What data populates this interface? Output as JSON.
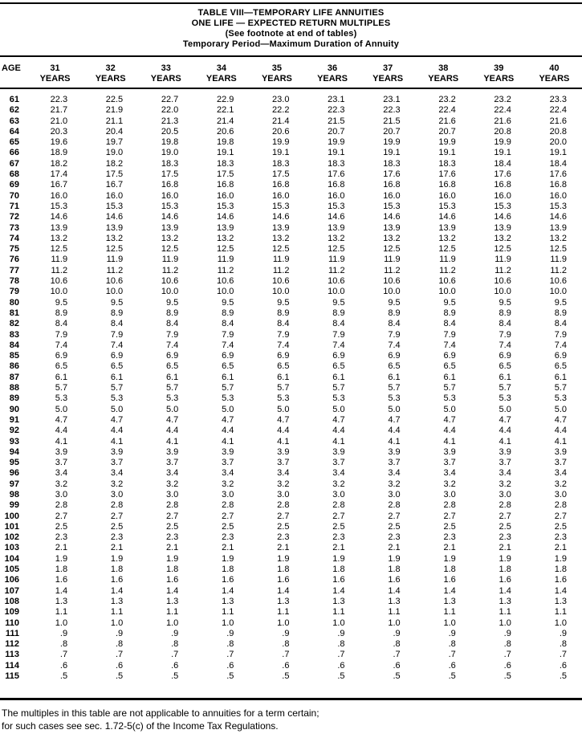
{
  "document": {
    "title_lines": [
      "TABLE VIII—TEMPORARY LIFE ANNUITIES",
      "ONE LIFE — EXPECTED RETURN MULTIPLES",
      "(See footnote at end of tables)",
      "Temporary Period—Maximum Duration of Annuity"
    ]
  },
  "table": {
    "age_header": "AGE",
    "years_label": "YEARS",
    "year_columns": [
      "31",
      "32",
      "33",
      "34",
      "35",
      "36",
      "37",
      "38",
      "39",
      "40"
    ],
    "rows": [
      {
        "age": "61",
        "values": [
          "22.3",
          "22.5",
          "22.7",
          "22.9",
          "23.0",
          "23.1",
          "23.1",
          "23.2",
          "23.2",
          "23.3"
        ]
      },
      {
        "age": "62",
        "values": [
          "21.7",
          "21.9",
          "22.0",
          "22.1",
          "22.2",
          "22.3",
          "22.3",
          "22.4",
          "22.4",
          "22.4"
        ]
      },
      {
        "age": "63",
        "values": [
          "21.0",
          "21.1",
          "21.3",
          "21.4",
          "21.4",
          "21.5",
          "21.5",
          "21.6",
          "21.6",
          "21.6"
        ]
      },
      {
        "age": "64",
        "values": [
          "20.3",
          "20.4",
          "20.5",
          "20.6",
          "20.6",
          "20.7",
          "20.7",
          "20.7",
          "20.8",
          "20.8"
        ]
      },
      {
        "age": "65",
        "values": [
          "19.6",
          "19.7",
          "19.8",
          "19.8",
          "19.9",
          "19.9",
          "19.9",
          "19.9",
          "19.9",
          "20.0"
        ]
      },
      {
        "age": "66",
        "values": [
          "18.9",
          "19.0",
          "19.0",
          "19.1",
          "19.1",
          "19.1",
          "19.1",
          "19.1",
          "19.1",
          "19.1"
        ]
      },
      {
        "age": "67",
        "values": [
          "18.2",
          "18.2",
          "18.3",
          "18.3",
          "18.3",
          "18.3",
          "18.3",
          "18.3",
          "18.4",
          "18.4"
        ]
      },
      {
        "age": "68",
        "values": [
          "17.4",
          "17.5",
          "17.5",
          "17.5",
          "17.5",
          "17.6",
          "17.6",
          "17.6",
          "17.6",
          "17.6"
        ]
      },
      {
        "age": "69",
        "values": [
          "16.7",
          "16.7",
          "16.8",
          "16.8",
          "16.8",
          "16.8",
          "16.8",
          "16.8",
          "16.8",
          "16.8"
        ]
      },
      {
        "age": "70",
        "values": [
          "16.0",
          "16.0",
          "16.0",
          "16.0",
          "16.0",
          "16.0",
          "16.0",
          "16.0",
          "16.0",
          "16.0"
        ]
      },
      {
        "age": "71",
        "values": [
          "15.3",
          "15.3",
          "15.3",
          "15.3",
          "15.3",
          "15.3",
          "15.3",
          "15.3",
          "15.3",
          "15.3"
        ]
      },
      {
        "age": "72",
        "values": [
          "14.6",
          "14.6",
          "14.6",
          "14.6",
          "14.6",
          "14.6",
          "14.6",
          "14.6",
          "14.6",
          "14.6"
        ]
      },
      {
        "age": "73",
        "values": [
          "13.9",
          "13.9",
          "13.9",
          "13.9",
          "13.9",
          "13.9",
          "13.9",
          "13.9",
          "13.9",
          "13.9"
        ]
      },
      {
        "age": "74",
        "values": [
          "13.2",
          "13.2",
          "13.2",
          "13.2",
          "13.2",
          "13.2",
          "13.2",
          "13.2",
          "13.2",
          "13.2"
        ]
      },
      {
        "age": "75",
        "values": [
          "12.5",
          "12.5",
          "12.5",
          "12.5",
          "12.5",
          "12.5",
          "12.5",
          "12.5",
          "12.5",
          "12.5"
        ]
      },
      {
        "age": "76",
        "values": [
          "11.9",
          "11.9",
          "11.9",
          "11.9",
          "11.9",
          "11.9",
          "11.9",
          "11.9",
          "11.9",
          "11.9"
        ]
      },
      {
        "age": "77",
        "values": [
          "11.2",
          "11.2",
          "11.2",
          "11.2",
          "11.2",
          "11.2",
          "11.2",
          "11.2",
          "11.2",
          "11.2"
        ]
      },
      {
        "age": "78",
        "values": [
          "10.6",
          "10.6",
          "10.6",
          "10.6",
          "10.6",
          "10.6",
          "10.6",
          "10.6",
          "10.6",
          "10.6"
        ]
      },
      {
        "age": "79",
        "values": [
          "10.0",
          "10.0",
          "10.0",
          "10.0",
          "10.0",
          "10.0",
          "10.0",
          "10.0",
          "10.0",
          "10.0"
        ]
      },
      {
        "age": "80",
        "values": [
          "9.5",
          "9.5",
          "9.5",
          "9.5",
          "9.5",
          "9.5",
          "9.5",
          "9.5",
          "9.5",
          "9.5"
        ]
      },
      {
        "age": "81",
        "values": [
          "8.9",
          "8.9",
          "8.9",
          "8.9",
          "8.9",
          "8.9",
          "8.9",
          "8.9",
          "8.9",
          "8.9"
        ]
      },
      {
        "age": "82",
        "values": [
          "8.4",
          "8.4",
          "8.4",
          "8.4",
          "8.4",
          "8.4",
          "8.4",
          "8.4",
          "8.4",
          "8.4"
        ]
      },
      {
        "age": "83",
        "values": [
          "7.9",
          "7.9",
          "7.9",
          "7.9",
          "7.9",
          "7.9",
          "7.9",
          "7.9",
          "7.9",
          "7.9"
        ]
      },
      {
        "age": "84",
        "values": [
          "7.4",
          "7.4",
          "7.4",
          "7.4",
          "7.4",
          "7.4",
          "7.4",
          "7.4",
          "7.4",
          "7.4"
        ]
      },
      {
        "age": "85",
        "values": [
          "6.9",
          "6.9",
          "6.9",
          "6.9",
          "6.9",
          "6.9",
          "6.9",
          "6.9",
          "6.9",
          "6.9"
        ]
      },
      {
        "age": "86",
        "values": [
          "6.5",
          "6.5",
          "6.5",
          "6.5",
          "6.5",
          "6.5",
          "6.5",
          "6.5",
          "6.5",
          "6.5"
        ]
      },
      {
        "age": "87",
        "values": [
          "6.1",
          "6.1",
          "6.1",
          "6.1",
          "6.1",
          "6.1",
          "6.1",
          "6.1",
          "6.1",
          "6.1"
        ]
      },
      {
        "age": "88",
        "values": [
          "5.7",
          "5.7",
          "5.7",
          "5.7",
          "5.7",
          "5.7",
          "5.7",
          "5.7",
          "5.7",
          "5.7"
        ]
      },
      {
        "age": "89",
        "values": [
          "5.3",
          "5.3",
          "5.3",
          "5.3",
          "5.3",
          "5.3",
          "5.3",
          "5.3",
          "5.3",
          "5.3"
        ]
      },
      {
        "age": "90",
        "values": [
          "5.0",
          "5.0",
          "5.0",
          "5.0",
          "5.0",
          "5.0",
          "5.0",
          "5.0",
          "5.0",
          "5.0"
        ]
      },
      {
        "age": "91",
        "values": [
          "4.7",
          "4.7",
          "4.7",
          "4.7",
          "4.7",
          "4.7",
          "4.7",
          "4.7",
          "4.7",
          "4.7"
        ]
      },
      {
        "age": "92",
        "values": [
          "4.4",
          "4.4",
          "4.4",
          "4.4",
          "4.4",
          "4.4",
          "4.4",
          "4.4",
          "4.4",
          "4.4"
        ]
      },
      {
        "age": "93",
        "values": [
          "4.1",
          "4.1",
          "4.1",
          "4.1",
          "4.1",
          "4.1",
          "4.1",
          "4.1",
          "4.1",
          "4.1"
        ]
      },
      {
        "age": "94",
        "values": [
          "3.9",
          "3.9",
          "3.9",
          "3.9",
          "3.9",
          "3.9",
          "3.9",
          "3.9",
          "3.9",
          "3.9"
        ]
      },
      {
        "age": "95",
        "values": [
          "3.7",
          "3.7",
          "3.7",
          "3.7",
          "3.7",
          "3.7",
          "3.7",
          "3.7",
          "3.7",
          "3.7"
        ]
      },
      {
        "age": "96",
        "values": [
          "3.4",
          "3.4",
          "3.4",
          "3.4",
          "3.4",
          "3.4",
          "3.4",
          "3.4",
          "3.4",
          "3.4"
        ]
      },
      {
        "age": "97",
        "values": [
          "3.2",
          "3.2",
          "3.2",
          "3.2",
          "3.2",
          "3.2",
          "3.2",
          "3.2",
          "3.2",
          "3.2"
        ]
      },
      {
        "age": "98",
        "values": [
          "3.0",
          "3.0",
          "3.0",
          "3.0",
          "3.0",
          "3.0",
          "3.0",
          "3.0",
          "3.0",
          "3.0"
        ]
      },
      {
        "age": "99",
        "values": [
          "2.8",
          "2.8",
          "2.8",
          "2.8",
          "2.8",
          "2.8",
          "2.8",
          "2.8",
          "2.8",
          "2.8"
        ]
      },
      {
        "age": "100",
        "values": [
          "2.7",
          "2.7",
          "2.7",
          "2.7",
          "2.7",
          "2.7",
          "2.7",
          "2.7",
          "2.7",
          "2.7"
        ]
      },
      {
        "age": "101",
        "values": [
          "2.5",
          "2.5",
          "2.5",
          "2.5",
          "2.5",
          "2.5",
          "2.5",
          "2.5",
          "2.5",
          "2.5"
        ]
      },
      {
        "age": "102",
        "values": [
          "2.3",
          "2.3",
          "2.3",
          "2.3",
          "2.3",
          "2.3",
          "2.3",
          "2.3",
          "2.3",
          "2.3"
        ]
      },
      {
        "age": "103",
        "values": [
          "2.1",
          "2.1",
          "2.1",
          "2.1",
          "2.1",
          "2.1",
          "2.1",
          "2.1",
          "2.1",
          "2.1"
        ]
      },
      {
        "age": "104",
        "values": [
          "1.9",
          "1.9",
          "1.9",
          "1.9",
          "1.9",
          "1.9",
          "1.9",
          "1.9",
          "1.9",
          "1.9"
        ]
      },
      {
        "age": "105",
        "values": [
          "1.8",
          "1.8",
          "1.8",
          "1.8",
          "1.8",
          "1.8",
          "1.8",
          "1.8",
          "1.8",
          "1.8"
        ]
      },
      {
        "age": "106",
        "values": [
          "1.6",
          "1.6",
          "1.6",
          "1.6",
          "1.6",
          "1.6",
          "1.6",
          "1.6",
          "1.6",
          "1.6"
        ]
      },
      {
        "age": "107",
        "values": [
          "1.4",
          "1.4",
          "1.4",
          "1.4",
          "1.4",
          "1.4",
          "1.4",
          "1.4",
          "1.4",
          "1.4"
        ]
      },
      {
        "age": "108",
        "values": [
          "1.3",
          "1.3",
          "1.3",
          "1.3",
          "1.3",
          "1.3",
          "1.3",
          "1.3",
          "1.3",
          "1.3"
        ]
      },
      {
        "age": "109",
        "values": [
          "1.1",
          "1.1",
          "1.1",
          "1.1",
          "1.1",
          "1.1",
          "1.1",
          "1.1",
          "1.1",
          "1.1"
        ]
      },
      {
        "age": "110",
        "values": [
          "1.0",
          "1.0",
          "1.0",
          "1.0",
          "1.0",
          "1.0",
          "1.0",
          "1.0",
          "1.0",
          "1.0"
        ]
      },
      {
        "age": "111",
        "values": [
          ".9",
          ".9",
          ".9",
          ".9",
          ".9",
          ".9",
          ".9",
          ".9",
          ".9",
          ".9"
        ]
      },
      {
        "age": "112",
        "values": [
          ".8",
          ".8",
          ".8",
          ".8",
          ".8",
          ".8",
          ".8",
          ".8",
          ".8",
          ".8"
        ]
      },
      {
        "age": "113",
        "values": [
          ".7",
          ".7",
          ".7",
          ".7",
          ".7",
          ".7",
          ".7",
          ".7",
          ".7",
          ".7"
        ]
      },
      {
        "age": "114",
        "values": [
          ".6",
          ".6",
          ".6",
          ".6",
          ".6",
          ".6",
          ".6",
          ".6",
          ".6",
          ".6"
        ]
      },
      {
        "age": "115",
        "values": [
          ".5",
          ".5",
          ".5",
          ".5",
          ".5",
          ".5",
          ".5",
          ".5",
          ".5",
          ".5"
        ]
      }
    ]
  },
  "footnote": {
    "lines": [
      "The multiples in this table are not applicable to annuities for a term certain;",
      "for such cases see sec. 1.72-5(c) of the Income Tax Regulations."
    ]
  }
}
